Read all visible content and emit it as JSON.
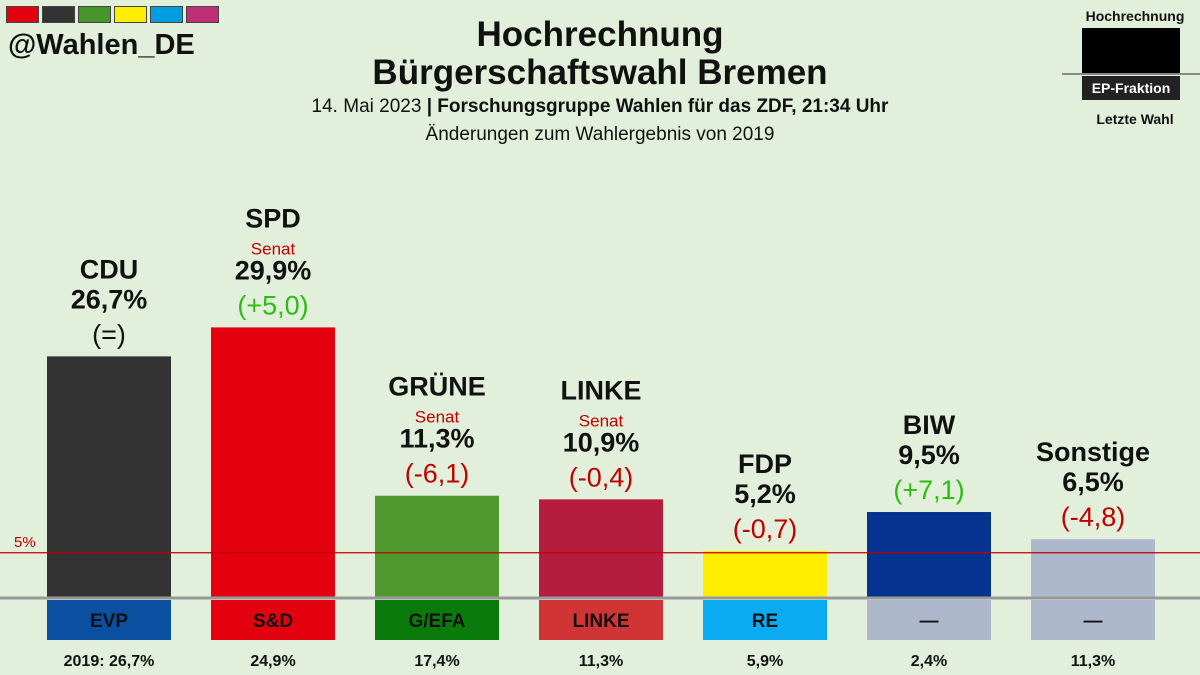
{
  "brand": {
    "handle": "@Wahlen_DE",
    "swatch_colors": [
      "#e3000f",
      "#333333",
      "#46962b",
      "#ffed00",
      "#009ee0",
      "#be3075"
    ]
  },
  "header": {
    "title_line1": "Hochrechnung",
    "title_line2": "Bürgerschaftswahl Bremen",
    "date": "14. Mai 2023",
    "separator": "|",
    "source": "Forschungsgruppe Wahlen für das ZDF, 21:34 Uhr",
    "note": "Änderungen zum Wahlergebnis von 2019"
  },
  "legend": {
    "top_label": "Hochrechnung",
    "faction_label": "EP-Fraktion",
    "bottom_label": "Letzte Wahl"
  },
  "chart_data": {
    "type": "bar",
    "title": "Hochrechnung Bürgerschaftswahl Bremen",
    "threshold": {
      "value": 5,
      "label": "5%",
      "color": "#c00000"
    },
    "ylim": [
      0,
      30
    ],
    "categories": [
      "CDU",
      "SPD",
      "GRÜNE",
      "LINKE",
      "FDP",
      "BIW",
      "Sonstige"
    ],
    "values": [
      26.7,
      29.9,
      11.3,
      10.9,
      5.2,
      9.5,
      6.5
    ],
    "parties": [
      {
        "name": "CDU",
        "value": 26.7,
        "pct_label": "26,7%",
        "change_label": "(=)",
        "change_dir": "eq",
        "senat": "",
        "color": "#333333",
        "faction": "EVP",
        "faction_color": "#0b4fa0",
        "faction_text_color": "#111111",
        "prev_label": "2019: 26,7%"
      },
      {
        "name": "SPD",
        "value": 29.9,
        "pct_label": "29,9%",
        "change_label": "(+5,0)",
        "change_dir": "up",
        "senat": "Senat",
        "color": "#e3000f",
        "faction": "S&D",
        "faction_color": "#e3000f",
        "faction_text_color": "#111111",
        "prev_label": "24,9%"
      },
      {
        "name": "GRÜNE",
        "value": 11.3,
        "pct_label": "11,3%",
        "change_label": "(-6,1)",
        "change_dir": "down",
        "senat": "Senat",
        "color": "#4e9a2f",
        "faction": "G/EFA",
        "faction_color": "#0a7a0a",
        "faction_text_color": "#111111",
        "prev_label": "17,4%"
      },
      {
        "name": "LINKE",
        "value": 10.9,
        "pct_label": "10,9%",
        "change_label": "(-0,4)",
        "change_dir": "down",
        "senat": "Senat",
        "color": "#b61c3d",
        "faction": "LINKE",
        "faction_color": "#d03434",
        "faction_text_color": "#111111",
        "prev_label": "11,3%"
      },
      {
        "name": "FDP",
        "value": 5.2,
        "pct_label": "5,2%",
        "change_label": "(-0,7)",
        "change_dir": "down",
        "senat": "",
        "color": "#ffed00",
        "faction": "RE",
        "faction_color": "#0aabf0",
        "faction_text_color": "#111111",
        "prev_label": "5,9%"
      },
      {
        "name": "BIW",
        "value": 9.5,
        "pct_label": "9,5%",
        "change_label": "(+7,1)",
        "change_dir": "up",
        "senat": "",
        "color": "#06338f",
        "faction": "—",
        "faction_color": "#aeb8cc",
        "faction_text_color": "#111111",
        "prev_label": "2,4%"
      },
      {
        "name": "Sonstige",
        "value": 6.5,
        "pct_label": "6,5%",
        "change_label": "(-4,8)",
        "change_dir": "down",
        "senat": "",
        "color": "#aeb8cc",
        "faction": "—",
        "faction_color": "#aeb8cc",
        "faction_text_color": "#111111",
        "prev_label": "11,3%"
      }
    ],
    "change_colors": {
      "up": "#2bbd10",
      "down": "#c00000",
      "eq": "#111111"
    }
  }
}
